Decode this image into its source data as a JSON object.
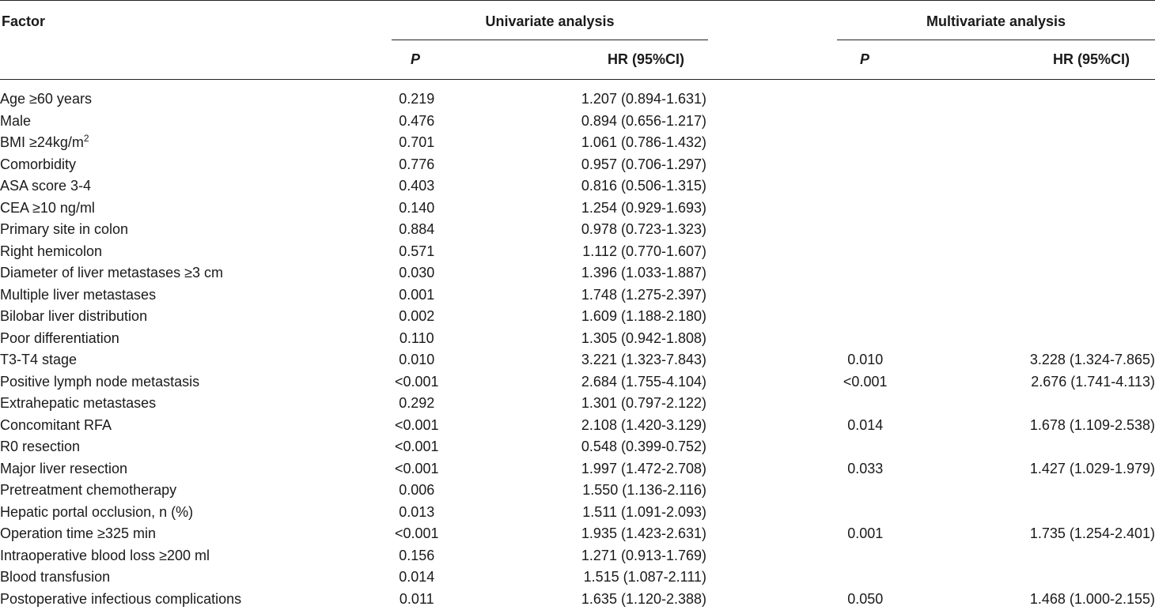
{
  "header": {
    "factor": "Factor",
    "univariate": "Univariate analysis",
    "multivariate": "Multivariate analysis",
    "p_label": "P",
    "hr_label": "HR (95%CI)"
  },
  "rows": [
    {
      "factor": "Age ≥60 years",
      "uni_p": "0.219",
      "uni_hr": "1.207 (0.894-1.631)",
      "multi_p": "",
      "multi_hr": ""
    },
    {
      "factor": "Male",
      "uni_p": "0.476",
      "uni_hr": "0.894 (0.656-1.217)",
      "multi_p": "",
      "multi_hr": ""
    },
    {
      "factor": "BMI ≥24kg/m",
      "factor_sup": "2",
      "uni_p": "0.701",
      "uni_hr": "1.061 (0.786-1.432)",
      "multi_p": "",
      "multi_hr": ""
    },
    {
      "factor": "Comorbidity",
      "uni_p": "0.776",
      "uni_hr": "0.957 (0.706-1.297)",
      "multi_p": "",
      "multi_hr": ""
    },
    {
      "factor": "ASA score 3-4",
      "uni_p": "0.403",
      "uni_hr": "0.816 (0.506-1.315)",
      "multi_p": "",
      "multi_hr": ""
    },
    {
      "factor": "CEA ≥10 ng/ml",
      "uni_p": "0.140",
      "uni_hr": "1.254 (0.929-1.693)",
      "multi_p": "",
      "multi_hr": ""
    },
    {
      "factor": "Primary site in colon",
      "uni_p": "0.884",
      "uni_hr": "0.978 (0.723-1.323)",
      "multi_p": "",
      "multi_hr": ""
    },
    {
      "factor": "Right hemicolon",
      "uni_p": "0.571",
      "uni_hr": "1.112 (0.770-1.607)",
      "multi_p": "",
      "multi_hr": ""
    },
    {
      "factor": "Diameter of liver metastases ≥3 cm",
      "uni_p": "0.030",
      "uni_hr": "1.396 (1.033-1.887)",
      "multi_p": "",
      "multi_hr": ""
    },
    {
      "factor": "Multiple liver metastases",
      "uni_p": "0.001",
      "uni_hr": "1.748 (1.275-2.397)",
      "multi_p": "",
      "multi_hr": ""
    },
    {
      "factor": "Bilobar liver distribution",
      "uni_p": "0.002",
      "uni_hr": "1.609 (1.188-2.180)",
      "multi_p": "",
      "multi_hr": ""
    },
    {
      "factor": "Poor differentiation",
      "uni_p": "0.110",
      "uni_hr": "1.305 (0.942-1.808)",
      "multi_p": "",
      "multi_hr": ""
    },
    {
      "factor": "T3-T4 stage",
      "uni_p": "0.010",
      "uni_hr": "3.221 (1.323-7.843)",
      "multi_p": "0.010",
      "multi_hr": "3.228 (1.324-7.865)"
    },
    {
      "factor": "Positive lymph node metastasis",
      "uni_p": "<0.001",
      "uni_hr": "2.684 (1.755-4.104)",
      "multi_p": "<0.001",
      "multi_hr": "2.676 (1.741-4.113)"
    },
    {
      "factor": "Extrahepatic metastases",
      "uni_p": "0.292",
      "uni_hr": "1.301 (0.797-2.122)",
      "multi_p": "",
      "multi_hr": ""
    },
    {
      "factor": "Concomitant RFA",
      "uni_p": "<0.001",
      "uni_hr": "2.108 (1.420-3.129)",
      "multi_p": "0.014",
      "multi_hr": "1.678 (1.109-2.538)"
    },
    {
      "factor": "R0 resection",
      "uni_p": "<0.001",
      "uni_hr": "0.548 (0.399-0.752)",
      "multi_p": "",
      "multi_hr": ""
    },
    {
      "factor": "Major liver resection",
      "uni_p": "<0.001",
      "uni_hr": "1.997 (1.472-2.708)",
      "multi_p": "0.033",
      "multi_hr": "1.427 (1.029-1.979)"
    },
    {
      "factor": "Pretreatment chemotherapy",
      "uni_p": "0.006",
      "uni_hr": "1.550 (1.136-2.116)",
      "multi_p": "",
      "multi_hr": ""
    },
    {
      "factor": "Hepatic portal occlusion, n (%)",
      "uni_p": "0.013",
      "uni_hr": "1.511 (1.091-2.093)",
      "multi_p": "",
      "multi_hr": ""
    },
    {
      "factor": "Operation time ≥325 min",
      "uni_p": "<0.001",
      "uni_hr": "1.935 (1.423-2.631)",
      "multi_p": "0.001",
      "multi_hr": "1.735 (1.254-2.401)"
    },
    {
      "factor": "Intraoperative blood loss ≥200 ml",
      "uni_p": "0.156",
      "uni_hr": "1.271 (0.913-1.769)",
      "multi_p": "",
      "multi_hr": ""
    },
    {
      "factor": "Blood transfusion",
      "uni_p": "0.014",
      "uni_hr": "1.515 (1.087-2.111)",
      "multi_p": "",
      "multi_hr": ""
    },
    {
      "factor": "Postoperative infectious complications",
      "uni_p": "0.011",
      "uni_hr": "1.635 (1.120-2.388)",
      "multi_p": "0.050",
      "multi_hr": "1.468 (1.000-2.155)"
    }
  ]
}
